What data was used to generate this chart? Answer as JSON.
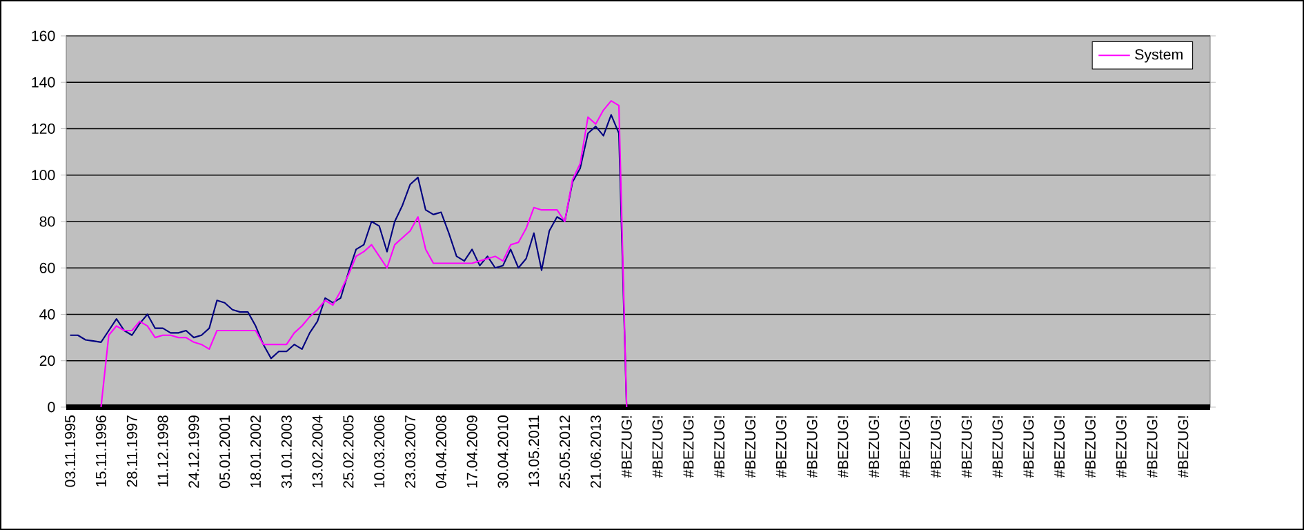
{
  "chart_data": {
    "type": "line",
    "categories": [
      "03.11.1995",
      null,
      null,
      null,
      "15.11.1996",
      null,
      null,
      null,
      "28.11.1997",
      null,
      null,
      null,
      "11.12.1998",
      null,
      null,
      null,
      "24.12.1999",
      null,
      null,
      null,
      "05.01.2001",
      null,
      null,
      null,
      "18.01.2002",
      null,
      null,
      null,
      "31.01.2003",
      null,
      null,
      null,
      "13.02.2004",
      null,
      null,
      null,
      "25.02.2005",
      null,
      null,
      null,
      "10.03.2006",
      null,
      null,
      null,
      "23.03.2007",
      null,
      null,
      null,
      "04.04.2008",
      null,
      null,
      null,
      "17.04.2009",
      null,
      null,
      null,
      "30.04.2010",
      null,
      null,
      null,
      "13.05.2011",
      null,
      null,
      null,
      "25.05.2012",
      null,
      null,
      null,
      "21.06.2013",
      null,
      null,
      null,
      "#BEZUG!",
      null,
      null,
      null,
      "#BEZUG!",
      null,
      null,
      null,
      "#BEZUG!",
      null,
      null,
      null,
      "#BEZUG!",
      null,
      null,
      null,
      "#BEZUG!",
      null,
      null,
      null,
      "#BEZUG!",
      null,
      null,
      null,
      "#BEZUG!",
      null,
      null,
      null,
      "#BEZUG!",
      null,
      null,
      null,
      "#BEZUG!",
      null,
      null,
      null,
      "#BEZUG!",
      null,
      null,
      null,
      "#BEZUG!",
      null,
      null,
      null,
      "#BEZUG!",
      null,
      null,
      null,
      "#BEZUG!",
      null,
      null,
      null,
      "#BEZUG!",
      null,
      null,
      null,
      "#BEZUG!",
      null,
      null,
      null,
      "#BEZUG!",
      null,
      null,
      null,
      "#BEZUG!",
      null,
      null,
      null,
      "#BEZUG!",
      null,
      null,
      null,
      "#BEZUG!",
      null,
      null,
      null
    ],
    "series": [
      {
        "color": "#000080",
        "values": [
          31,
          31,
          29,
          28.5,
          28,
          33,
          38,
          33,
          31,
          36,
          40,
          34,
          34,
          32,
          32,
          33,
          30,
          31,
          34,
          46,
          45,
          42,
          41,
          41,
          35,
          27,
          21,
          24,
          24,
          27,
          25,
          32,
          37,
          47,
          45,
          47,
          58,
          68,
          70,
          80,
          78,
          67,
          80,
          87,
          96,
          99,
          85,
          83,
          84,
          75,
          65,
          63,
          68,
          61,
          65,
          60,
          61,
          68,
          60,
          64,
          75,
          59,
          76,
          82,
          80,
          97,
          103,
          118,
          121,
          117,
          126,
          118,
          0,
          null,
          null,
          null,
          null,
          null,
          null,
          null,
          null,
          null,
          null,
          null,
          null,
          null,
          null,
          null,
          null,
          null,
          null,
          null,
          null,
          null,
          null,
          null,
          null,
          null,
          null,
          null,
          null,
          null,
          null,
          null,
          null,
          null,
          null,
          null,
          null,
          null,
          null,
          null,
          null,
          null,
          null,
          null,
          null,
          null,
          null,
          null,
          null,
          null,
          null,
          null,
          null,
          null,
          null,
          null,
          null,
          null,
          null,
          null,
          null,
          null,
          null,
          null,
          null,
          null,
          null,
          null,
          null,
          null,
          null,
          null,
          null,
          null,
          null,
          null
        ]
      },
      {
        "name": "System",
        "color": "#ff00ff",
        "values": [
          null,
          null,
          null,
          null,
          0,
          31,
          35,
          33,
          33,
          37,
          35,
          30,
          31,
          31,
          30,
          30,
          28,
          27,
          25,
          33,
          33,
          33,
          33,
          33,
          33,
          27,
          27,
          27,
          27,
          32,
          35,
          39,
          42,
          46,
          44,
          50,
          57,
          65,
          67,
          70,
          65,
          60,
          70,
          73,
          76,
          82,
          68,
          62,
          62,
          62,
          62,
          62,
          62,
          63,
          64,
          65,
          63,
          70,
          71,
          77,
          86,
          85,
          85,
          85,
          80,
          98,
          105,
          125,
          122,
          128,
          132,
          130,
          0,
          null,
          null,
          null,
          null,
          null,
          null,
          null,
          null,
          null,
          null,
          null,
          null,
          null,
          null,
          null,
          null,
          null,
          null,
          null,
          null,
          null,
          null,
          null,
          null,
          null,
          null,
          null,
          null,
          null,
          null,
          null,
          null,
          null,
          null,
          null,
          null,
          null,
          null,
          null,
          null,
          null,
          null,
          null,
          null,
          null,
          null,
          null,
          null,
          null,
          null,
          null,
          null,
          null,
          null,
          null,
          null,
          null,
          null,
          null,
          null,
          null,
          null,
          null,
          null,
          null,
          null,
          null,
          null,
          null,
          null,
          null,
          null,
          null,
          null,
          null
        ]
      }
    ],
    "ylim": [
      0,
      160
    ],
    "yticks": [
      0,
      20,
      40,
      60,
      80,
      100,
      120,
      140,
      160
    ],
    "grid": "y",
    "legend": "top right",
    "marker": "none",
    "line_style": "solid"
  }
}
